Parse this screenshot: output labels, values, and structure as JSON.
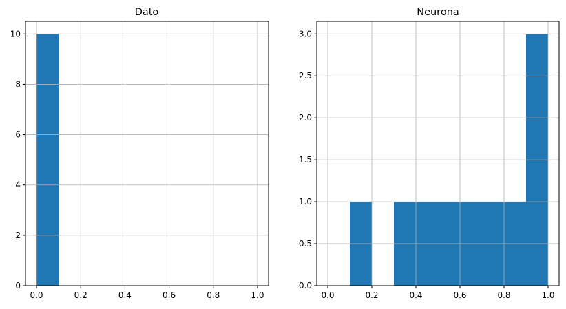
{
  "chart_data": [
    {
      "type": "bar",
      "title": "Dato",
      "xlabel": "",
      "ylabel": "",
      "grid": true,
      "bar_color": "#1f77b4",
      "xlim": [
        -0.05,
        1.05
      ],
      "ylim": [
        0,
        10.5
      ],
      "xticks": [
        0.0,
        0.2,
        0.4,
        0.6,
        0.8,
        1.0
      ],
      "xtick_labels": [
        "0.0",
        "0.2",
        "0.4",
        "0.6",
        "0.8",
        "1.0"
      ],
      "yticks": [
        0,
        2,
        4,
        6,
        8,
        10
      ],
      "ytick_labels": [
        "0",
        "2",
        "4",
        "6",
        "8",
        "10"
      ],
      "bins": [
        {
          "x0": 0.0,
          "x1": 0.1,
          "count": 10
        },
        {
          "x0": 0.1,
          "x1": 0.2,
          "count": 0
        },
        {
          "x0": 0.2,
          "x1": 0.3,
          "count": 0
        },
        {
          "x0": 0.3,
          "x1": 0.4,
          "count": 0
        },
        {
          "x0": 0.4,
          "x1": 0.5,
          "count": 0
        },
        {
          "x0": 0.5,
          "x1": 0.6,
          "count": 0
        },
        {
          "x0": 0.6,
          "x1": 0.7,
          "count": 0
        },
        {
          "x0": 0.7,
          "x1": 0.8,
          "count": 0
        },
        {
          "x0": 0.8,
          "x1": 0.9,
          "count": 0
        },
        {
          "x0": 0.9,
          "x1": 1.0,
          "count": 0
        }
      ]
    },
    {
      "type": "bar",
      "title": "Neurona",
      "xlabel": "",
      "ylabel": "",
      "grid": true,
      "bar_color": "#1f77b4",
      "xlim": [
        -0.05,
        1.05
      ],
      "ylim": [
        0,
        3.15
      ],
      "xticks": [
        0.0,
        0.2,
        0.4,
        0.6,
        0.8,
        1.0
      ],
      "xtick_labels": [
        "0.0",
        "0.2",
        "0.4",
        "0.6",
        "0.8",
        "1.0"
      ],
      "yticks": [
        0.0,
        0.5,
        1.0,
        1.5,
        2.0,
        2.5,
        3.0
      ],
      "ytick_labels": [
        "0.0",
        "0.5",
        "1.0",
        "1.5",
        "2.0",
        "2.5",
        "3.0"
      ],
      "bins": [
        {
          "x0": 0.0,
          "x1": 0.1,
          "count": 0
        },
        {
          "x0": 0.1,
          "x1": 0.2,
          "count": 1
        },
        {
          "x0": 0.2,
          "x1": 0.3,
          "count": 0
        },
        {
          "x0": 0.3,
          "x1": 0.4,
          "count": 1
        },
        {
          "x0": 0.4,
          "x1": 0.5,
          "count": 1
        },
        {
          "x0": 0.5,
          "x1": 0.6,
          "count": 1
        },
        {
          "x0": 0.6,
          "x1": 0.7,
          "count": 1
        },
        {
          "x0": 0.7,
          "x1": 0.8,
          "count": 1
        },
        {
          "x0": 0.8,
          "x1": 0.9,
          "count": 1
        },
        {
          "x0": 0.9,
          "x1": 1.0,
          "count": 3
        }
      ]
    }
  ]
}
